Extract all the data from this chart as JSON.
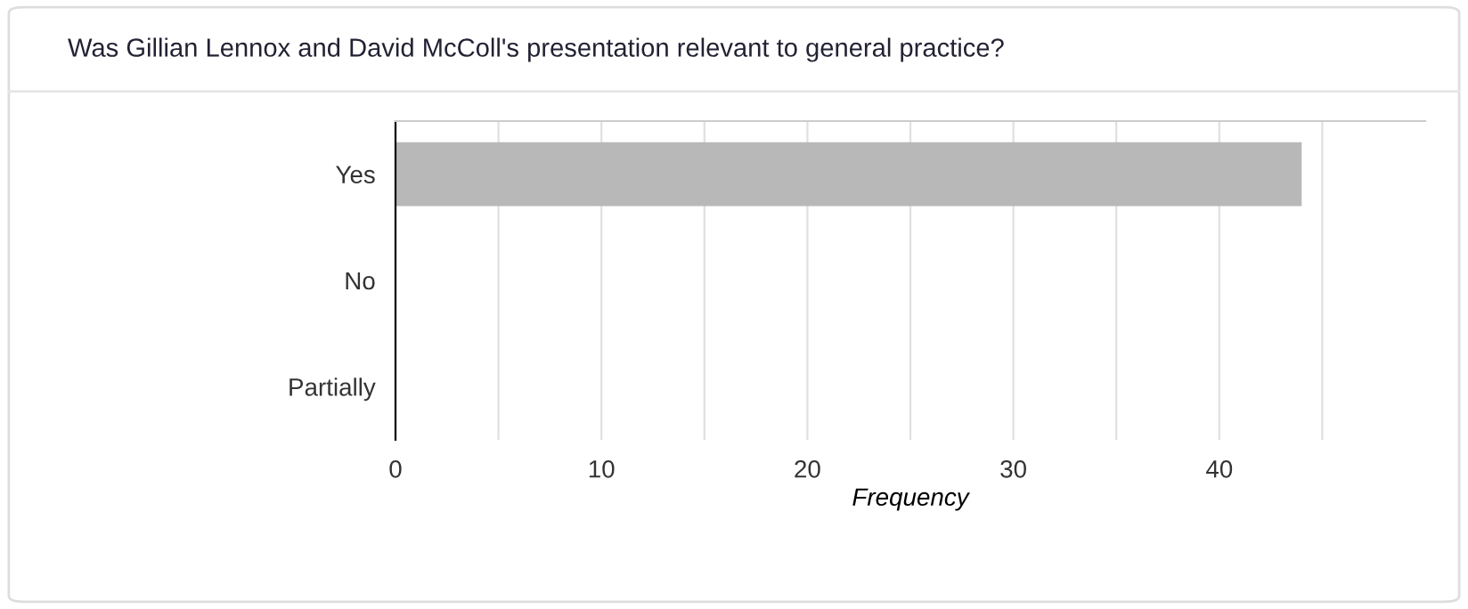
{
  "chart_data": {
    "type": "bar",
    "orientation": "horizontal",
    "title": "Was Gillian Lennox and David McColl's presentation relevant to general practice?",
    "xlabel": "Frequency",
    "categories": [
      "Yes",
      "No",
      "Partially"
    ],
    "series": [
      {
        "color": "#b8b8b8",
        "values": [
          44,
          0,
          0
        ]
      }
    ],
    "xlim": [
      0,
      50
    ],
    "xticks": [
      0,
      {
        "value": 5,
        "label": null
      },
      10,
      {
        "value": 15,
        "label": null
      },
      20,
      {
        "value": 25,
        "label": null
      },
      30,
      {
        "value": 35,
        "label": null
      },
      40,
      {
        "value": 45,
        "label": null
      }
    ],
    "grid": "x",
    "legend": false
  }
}
